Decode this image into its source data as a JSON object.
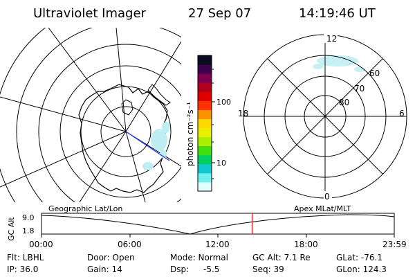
{
  "header": {
    "instrument": "Ultraviolet Imager",
    "date": "27 Sep 07",
    "time": "14:19:46 UT"
  },
  "colorbar": {
    "unit_label": "photon cm⁻²s⁻¹",
    "tick_100": "100",
    "tick_10": "10",
    "colors": [
      "#e0ffff",
      "#70f0f0",
      "#10c8d0",
      "#00d060",
      "#40e010",
      "#a8f000",
      "#e8f000",
      "#ffd800",
      "#ff9000",
      "#ff3000",
      "#e00000",
      "#b00020",
      "#800050",
      "#400050",
      "#0a0a20"
    ]
  },
  "polar_plot": {
    "mlt_12": "12",
    "mlt_18": "18",
    "mlt_6": "6",
    "mlt_0": "0",
    "lat_60": "60",
    "lat_70": "70",
    "lat_80": "80"
  },
  "timeline": {
    "left_label": "Geographic Lat/Lon",
    "right_label": "Apex MLat/MLT",
    "y_label": "GC Alt",
    "y_max": "9.0",
    "y_min": "1.8",
    "x_ticks": [
      "00:00",
      "06:00",
      "12:00",
      "18:00",
      "23:59"
    ],
    "marker_color": "#ff0000",
    "marker_hour": 14.33
  },
  "info": {
    "flt": "Flt: LBHL",
    "ip": "IP: 36.0",
    "door": "Door: Open",
    "gain": "Gain: 14",
    "mode": "Mode: Normal",
    "dsp": "Dsp:",
    "dsp_val": "-5.5",
    "gc_alt": "GC Alt: 7.1 Re",
    "seq": "Seq: 39",
    "glat": "GLat: -76.1",
    "glon": "GLon: 124.3"
  }
}
